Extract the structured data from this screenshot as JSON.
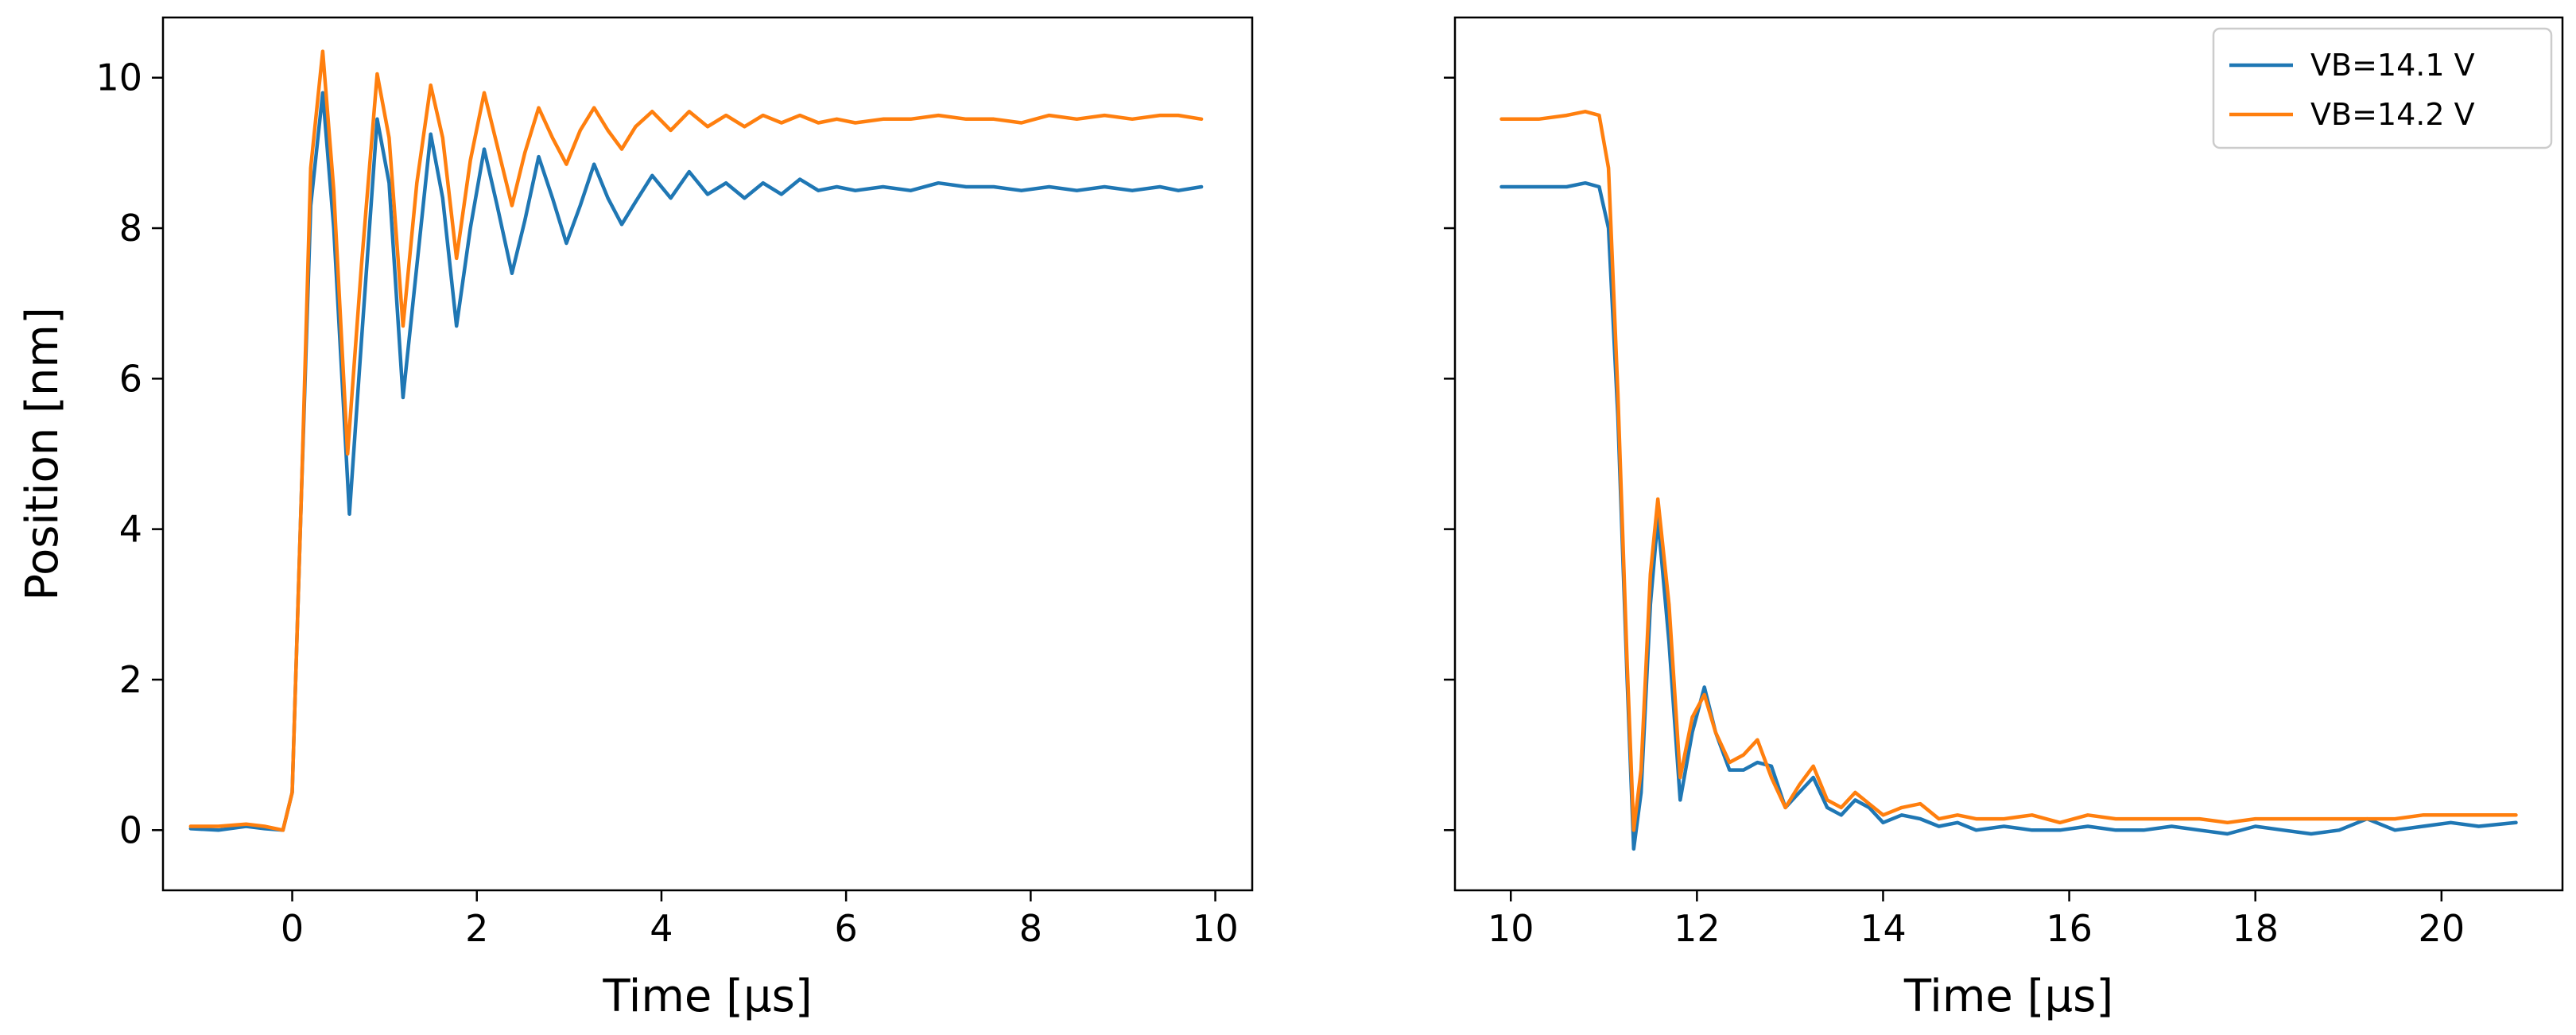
{
  "chart_data": [
    {
      "type": "line",
      "xlabel": "Time [μs]",
      "ylabel": "Position [nm]",
      "xlim": [
        -1.4,
        10.4
      ],
      "ylim": [
        -0.8,
        10.8
      ],
      "xticks": [
        0,
        2,
        4,
        6,
        8,
        10
      ],
      "yticks": [
        0,
        2,
        4,
        6,
        8,
        10
      ],
      "grid": false,
      "series": [
        {
          "name": "VB=14.1 V",
          "color": "#1f77b4",
          "x": [
            -1.1,
            -0.8,
            -0.5,
            -0.3,
            -0.1,
            0.0,
            0.1,
            0.2,
            0.33,
            0.45,
            0.62,
            0.75,
            0.92,
            1.05,
            1.2,
            1.35,
            1.5,
            1.63,
            1.78,
            1.93,
            2.08,
            2.22,
            2.38,
            2.52,
            2.67,
            2.82,
            2.97,
            3.12,
            3.27,
            3.42,
            3.57,
            3.72,
            3.9,
            4.1,
            4.3,
            4.5,
            4.7,
            4.9,
            5.1,
            5.3,
            5.5,
            5.7,
            5.9,
            6.1,
            6.4,
            6.7,
            7.0,
            7.3,
            7.6,
            7.9,
            8.2,
            8.5,
            8.8,
            9.1,
            9.4,
            9.6,
            9.85
          ],
          "values": [
            0.02,
            0.0,
            0.05,
            0.02,
            0.0,
            0.5,
            4.5,
            8.3,
            9.8,
            8.0,
            4.2,
            6.5,
            9.45,
            8.6,
            5.75,
            7.5,
            9.25,
            8.4,
            6.7,
            8.0,
            9.05,
            8.3,
            7.4,
            8.1,
            8.95,
            8.4,
            7.8,
            8.3,
            8.85,
            8.4,
            8.05,
            8.35,
            8.7,
            8.4,
            8.75,
            8.45,
            8.6,
            8.4,
            8.6,
            8.45,
            8.65,
            8.5,
            8.55,
            8.5,
            8.55,
            8.5,
            8.6,
            8.55,
            8.55,
            8.5,
            8.55,
            8.5,
            8.55,
            8.5,
            8.55,
            8.5,
            8.55
          ]
        },
        {
          "name": "VB=14.2 V",
          "color": "#ff7f0e",
          "x": [
            -1.1,
            -0.8,
            -0.5,
            -0.3,
            -0.1,
            0.0,
            0.1,
            0.2,
            0.33,
            0.45,
            0.6,
            0.75,
            0.92,
            1.05,
            1.2,
            1.35,
            1.5,
            1.63,
            1.78,
            1.93,
            2.08,
            2.22,
            2.38,
            2.52,
            2.67,
            2.82,
            2.97,
            3.12,
            3.27,
            3.42,
            3.57,
            3.72,
            3.9,
            4.1,
            4.3,
            4.5,
            4.7,
            4.9,
            5.1,
            5.3,
            5.5,
            5.7,
            5.9,
            6.1,
            6.4,
            6.7,
            7.0,
            7.3,
            7.6,
            7.9,
            8.2,
            8.5,
            8.8,
            9.1,
            9.4,
            9.6,
            9.85
          ],
          "values": [
            0.05,
            0.05,
            0.08,
            0.05,
            0.0,
            0.5,
            4.5,
            8.8,
            10.35,
            8.5,
            5.0,
            7.5,
            10.05,
            9.2,
            6.7,
            8.6,
            9.9,
            9.2,
            7.6,
            8.9,
            9.8,
            9.1,
            8.3,
            9.0,
            9.6,
            9.2,
            8.85,
            9.3,
            9.6,
            9.3,
            9.05,
            9.35,
            9.55,
            9.3,
            9.55,
            9.35,
            9.5,
            9.35,
            9.5,
            9.4,
            9.5,
            9.4,
            9.45,
            9.4,
            9.45,
            9.45,
            9.5,
            9.45,
            9.45,
            9.4,
            9.5,
            9.45,
            9.5,
            9.45,
            9.5,
            9.5,
            9.45
          ]
        }
      ]
    },
    {
      "type": "line",
      "xlabel": "Time [μs]",
      "ylabel": "",
      "xlim": [
        9.4,
        21.3
      ],
      "ylim": [
        -0.8,
        10.8
      ],
      "xticks": [
        10,
        12,
        14,
        16,
        18,
        20
      ],
      "yticks": [
        0,
        2,
        4,
        6,
        8,
        10
      ],
      "ytick_labels_visible": false,
      "grid": false,
      "legend": "upper right",
      "series": [
        {
          "name": "VB=14.1 V",
          "color": "#1f77b4",
          "x": [
            9.9,
            10.3,
            10.6,
            10.8,
            10.95,
            11.05,
            11.15,
            11.25,
            11.32,
            11.4,
            11.5,
            11.58,
            11.7,
            11.82,
            11.95,
            12.08,
            12.2,
            12.35,
            12.5,
            12.65,
            12.8,
            12.95,
            13.1,
            13.25,
            13.4,
            13.55,
            13.7,
            13.85,
            14.0,
            14.2,
            14.4,
            14.6,
            14.8,
            15.0,
            15.3,
            15.6,
            15.9,
            16.2,
            16.5,
            16.8,
            17.1,
            17.4,
            17.7,
            18.0,
            18.3,
            18.6,
            18.9,
            19.2,
            19.5,
            19.8,
            20.1,
            20.4,
            20.8
          ],
          "values": [
            8.55,
            8.55,
            8.55,
            8.6,
            8.55,
            8.0,
            5.5,
            2.0,
            -0.25,
            0.5,
            3.0,
            4.15,
            2.5,
            0.4,
            1.3,
            1.9,
            1.3,
            0.8,
            0.8,
            0.9,
            0.85,
            0.3,
            0.5,
            0.7,
            0.3,
            0.2,
            0.4,
            0.3,
            0.1,
            0.2,
            0.15,
            0.05,
            0.1,
            0.0,
            0.05,
            0.0,
            0.0,
            0.05,
            0.0,
            0.0,
            0.05,
            0.0,
            -0.05,
            0.05,
            0.0,
            -0.05,
            0.0,
            0.15,
            0.0,
            0.05,
            0.1,
            0.05,
            0.1
          ]
        },
        {
          "name": "VB=14.2 V",
          "color": "#ff7f0e",
          "x": [
            9.9,
            10.3,
            10.6,
            10.8,
            10.95,
            11.05,
            11.15,
            11.25,
            11.32,
            11.4,
            11.5,
            11.58,
            11.7,
            11.82,
            11.95,
            12.08,
            12.2,
            12.35,
            12.5,
            12.65,
            12.8,
            12.95,
            13.1,
            13.25,
            13.4,
            13.55,
            13.7,
            13.85,
            14.0,
            14.2,
            14.4,
            14.6,
            14.8,
            15.0,
            15.3,
            15.6,
            15.9,
            16.2,
            16.5,
            16.8,
            17.1,
            17.4,
            17.7,
            18.0,
            18.3,
            18.6,
            18.9,
            19.2,
            19.5,
            19.8,
            20.1,
            20.4,
            20.8
          ],
          "values": [
            9.45,
            9.45,
            9.5,
            9.55,
            9.5,
            8.8,
            5.8,
            2.2,
            0.0,
            0.8,
            3.4,
            4.4,
            3.0,
            0.7,
            1.5,
            1.8,
            1.3,
            0.9,
            1.0,
            1.2,
            0.7,
            0.3,
            0.6,
            0.85,
            0.4,
            0.3,
            0.5,
            0.35,
            0.2,
            0.3,
            0.35,
            0.15,
            0.2,
            0.15,
            0.15,
            0.2,
            0.1,
            0.2,
            0.15,
            0.15,
            0.15,
            0.15,
            0.1,
            0.15,
            0.15,
            0.15,
            0.15,
            0.15,
            0.15,
            0.2,
            0.2,
            0.2,
            0.2
          ]
        }
      ]
    }
  ]
}
